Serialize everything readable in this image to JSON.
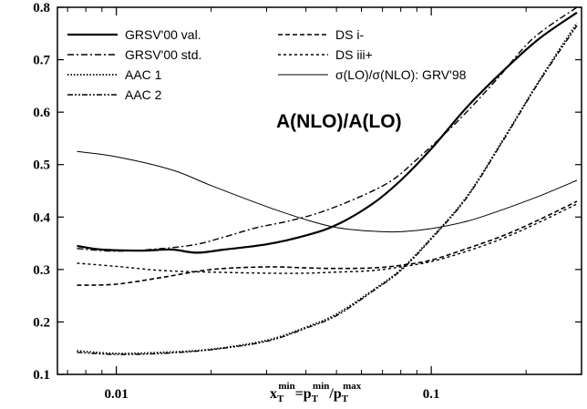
{
  "chart_data": {
    "type": "line",
    "x_scale": "log",
    "xlim": [
      0.0065,
      0.3
    ],
    "ylim": [
      0.1,
      0.8
    ],
    "grid": false,
    "legend_placement": "top-left",
    "title": "",
    "xlabel": {
      "base": "x",
      "sub1": "T",
      "sup1": "min",
      "eq": "=p",
      "sub2": "T",
      "sup2": "min",
      "slash": "/p",
      "sub3": "T",
      "sup3": "max"
    },
    "ylabel": "",
    "annotation": "A(NLO)/A(LO)",
    "x_ticks": [
      {
        "value": 0.01,
        "label": "0.01"
      },
      {
        "value": 0.1,
        "label": "0.1"
      }
    ],
    "y_ticks": [
      {
        "value": 0.1,
        "label": "0.1"
      },
      {
        "value": 0.2,
        "label": "0.2"
      },
      {
        "value": 0.3,
        "label": "0.3"
      },
      {
        "value": 0.4,
        "label": "0.4"
      },
      {
        "value": 0.5,
        "label": "0.5"
      },
      {
        "value": 0.6,
        "label": "0.6"
      },
      {
        "value": 0.7,
        "label": "0.7"
      },
      {
        "value": 0.8,
        "label": "0.8"
      }
    ],
    "series": [
      {
        "name": "GRSV'00 val.",
        "style": "solid",
        "width": 2.2,
        "points": [
          [
            0.0075,
            0.345
          ],
          [
            0.009,
            0.338
          ],
          [
            0.012,
            0.336
          ],
          [
            0.015,
            0.338
          ],
          [
            0.018,
            0.332
          ],
          [
            0.022,
            0.338
          ],
          [
            0.03,
            0.348
          ],
          [
            0.04,
            0.365
          ],
          [
            0.05,
            0.385
          ],
          [
            0.065,
            0.425
          ],
          [
            0.08,
            0.47
          ],
          [
            0.1,
            0.53
          ],
          [
            0.13,
            0.61
          ],
          [
            0.17,
            0.68
          ],
          [
            0.22,
            0.74
          ],
          [
            0.29,
            0.79
          ]
        ]
      },
      {
        "name": "GRSV'00 std.",
        "style": "dashdot",
        "width": 1.4,
        "points": [
          [
            0.0075,
            0.34
          ],
          [
            0.01,
            0.335
          ],
          [
            0.014,
            0.34
          ],
          [
            0.018,
            0.348
          ],
          [
            0.022,
            0.362
          ],
          [
            0.028,
            0.38
          ],
          [
            0.035,
            0.392
          ],
          [
            0.045,
            0.41
          ],
          [
            0.06,
            0.44
          ],
          [
            0.075,
            0.47
          ],
          [
            0.09,
            0.51
          ],
          [
            0.12,
            0.58
          ],
          [
            0.16,
            0.66
          ],
          [
            0.21,
            0.74
          ],
          [
            0.29,
            0.8
          ]
        ]
      },
      {
        "name": "AAC 1",
        "style": "dotted",
        "width": 1.8,
        "points": [
          [
            0.0075,
            0.145
          ],
          [
            0.01,
            0.14
          ],
          [
            0.014,
            0.142
          ],
          [
            0.02,
            0.148
          ],
          [
            0.03,
            0.165
          ],
          [
            0.04,
            0.19
          ],
          [
            0.05,
            0.215
          ],
          [
            0.065,
            0.26
          ],
          [
            0.08,
            0.3
          ],
          [
            0.1,
            0.36
          ],
          [
            0.13,
            0.44
          ],
          [
            0.17,
            0.55
          ],
          [
            0.22,
            0.66
          ],
          [
            0.29,
            0.77
          ]
        ]
      },
      {
        "name": "AAC 2",
        "style": "dashdotdot",
        "width": 1.4,
        "points": [
          [
            0.0075,
            0.142
          ],
          [
            0.01,
            0.138
          ],
          [
            0.014,
            0.14
          ],
          [
            0.02,
            0.147
          ],
          [
            0.03,
            0.163
          ],
          [
            0.04,
            0.188
          ],
          [
            0.05,
            0.212
          ],
          [
            0.065,
            0.258
          ],
          [
            0.08,
            0.298
          ],
          [
            0.1,
            0.358
          ],
          [
            0.13,
            0.438
          ],
          [
            0.17,
            0.548
          ],
          [
            0.22,
            0.658
          ],
          [
            0.29,
            0.765
          ]
        ]
      },
      {
        "name": "DS i-",
        "style": "dashed",
        "width": 1.6,
        "points": [
          [
            0.0075,
            0.27
          ],
          [
            0.01,
            0.272
          ],
          [
            0.014,
            0.285
          ],
          [
            0.02,
            0.3
          ],
          [
            0.03,
            0.305
          ],
          [
            0.04,
            0.303
          ],
          [
            0.05,
            0.302
          ],
          [
            0.065,
            0.303
          ],
          [
            0.08,
            0.308
          ],
          [
            0.1,
            0.318
          ],
          [
            0.13,
            0.34
          ],
          [
            0.17,
            0.365
          ],
          [
            0.22,
            0.395
          ],
          [
            0.29,
            0.43
          ]
        ]
      },
      {
        "name": "DS iii+",
        "style": "shortdash",
        "width": 1.4,
        "points": [
          [
            0.0075,
            0.312
          ],
          [
            0.01,
            0.306
          ],
          [
            0.014,
            0.298
          ],
          [
            0.02,
            0.295
          ],
          [
            0.03,
            0.293
          ],
          [
            0.04,
            0.293
          ],
          [
            0.05,
            0.295
          ],
          [
            0.065,
            0.298
          ],
          [
            0.08,
            0.305
          ],
          [
            0.1,
            0.315
          ],
          [
            0.13,
            0.335
          ],
          [
            0.17,
            0.36
          ],
          [
            0.22,
            0.39
          ],
          [
            0.29,
            0.425
          ]
        ]
      },
      {
        "name": "σ(LO)/σ(NLO): GRV'98",
        "style": "thin",
        "width": 1.0,
        "points": [
          [
            0.0075,
            0.525
          ],
          [
            0.01,
            0.515
          ],
          [
            0.015,
            0.49
          ],
          [
            0.02,
            0.46
          ],
          [
            0.03,
            0.42
          ],
          [
            0.04,
            0.395
          ],
          [
            0.05,
            0.38
          ],
          [
            0.065,
            0.373
          ],
          [
            0.08,
            0.372
          ],
          [
            0.1,
            0.378
          ],
          [
            0.13,
            0.392
          ],
          [
            0.17,
            0.415
          ],
          [
            0.22,
            0.44
          ],
          [
            0.29,
            0.47
          ]
        ]
      }
    ]
  }
}
